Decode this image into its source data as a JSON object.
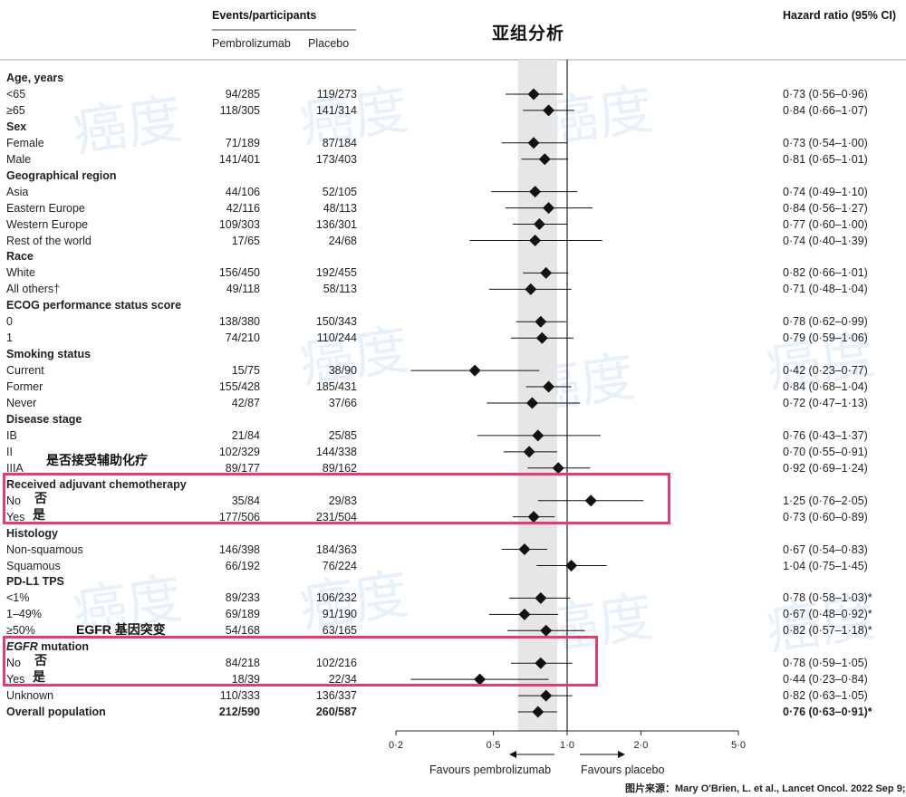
{
  "title_cn": "亚组分析",
  "header": {
    "events": "Events/participants",
    "pembro": "Pembrolizumab",
    "placebo": "Placebo",
    "hr": "Hazard ratio (95% CI)"
  },
  "annotations": {
    "adjuvant_cn": "是否接受辅助化疗",
    "egfr_cn": "EGFR 基因突变"
  },
  "favours": {
    "left": "Favours pembrolizumab",
    "right": "Favours placebo"
  },
  "source": "图片来源：Mary O'Brien, L. et al., Lancet Oncol. 2022 Sep 9;",
  "watermark": "癌度",
  "colors": {
    "highlight": "#e43c6d",
    "band": "#e6e6e6",
    "marker": "#111111"
  },
  "chart_data": {
    "type": "forest",
    "x_scale": "log",
    "xlim": [
      0.2,
      5.0
    ],
    "ticks": [
      0.2,
      0.5,
      1.0,
      2.0,
      5.0
    ],
    "tick_labels": [
      "0·2",
      "0·5",
      "1·0",
      "2·0",
      "5·0"
    ],
    "reference_line": 1.0,
    "overall_ci_band": [
      0.63,
      0.91
    ],
    "rows": [
      {
        "label": "Age, years",
        "category": true
      },
      {
        "label": "<65",
        "pem": "94/285",
        "pla": "119/273",
        "hr_text": "0·73 (0·56–0·96)",
        "hr": 0.73,
        "lo": 0.56,
        "hi": 0.96
      },
      {
        "label": "≥65",
        "pem": "118/305",
        "pla": "141/314",
        "hr_text": "0·84 (0·66–1·07)",
        "hr": 0.84,
        "lo": 0.66,
        "hi": 1.07
      },
      {
        "label": "Sex",
        "category": true
      },
      {
        "label": "Female",
        "pem": "71/189",
        "pla": "87/184",
        "hr_text": "0·73 (0·54–1·00)",
        "hr": 0.73,
        "lo": 0.54,
        "hi": 1.0
      },
      {
        "label": "Male",
        "pem": "141/401",
        "pla": "173/403",
        "hr_text": "0·81 (0·65–1·01)",
        "hr": 0.81,
        "lo": 0.65,
        "hi": 1.01
      },
      {
        "label": "Geographical region",
        "category": true
      },
      {
        "label": "Asia",
        "pem": "44/106",
        "pla": "52/105",
        "hr_text": "0·74 (0·49–1·10)",
        "hr": 0.74,
        "lo": 0.49,
        "hi": 1.1
      },
      {
        "label": "Eastern Europe",
        "pem": "42/116",
        "pla": "48/113",
        "hr_text": "0·84 (0·56–1·27)",
        "hr": 0.84,
        "lo": 0.56,
        "hi": 1.27
      },
      {
        "label": "Western Europe",
        "pem": "109/303",
        "pla": "136/301",
        "hr_text": "0·77 (0·60–1·00)",
        "hr": 0.77,
        "lo": 0.6,
        "hi": 1.0
      },
      {
        "label": "Rest of the world",
        "pem": "17/65",
        "pla": "24/68",
        "hr_text": "0·74 (0·40–1·39)",
        "hr": 0.74,
        "lo": 0.4,
        "hi": 1.39
      },
      {
        "label": "Race",
        "category": true
      },
      {
        "label": "White",
        "pem": "156/450",
        "pla": "192/455",
        "hr_text": "0·82 (0·66–1·01)",
        "hr": 0.82,
        "lo": 0.66,
        "hi": 1.01
      },
      {
        "label": "All others†",
        "pem": "49/118",
        "pla": "58/113",
        "hr_text": "0·71 (0·48–1·04)",
        "hr": 0.71,
        "lo": 0.48,
        "hi": 1.04
      },
      {
        "label": "ECOG performance status score",
        "category": true
      },
      {
        "label": "0",
        "pem": "138/380",
        "pla": "150/343",
        "hr_text": "0·78 (0·62–0·99)",
        "hr": 0.78,
        "lo": 0.62,
        "hi": 0.99
      },
      {
        "label": "1",
        "pem": "74/210",
        "pla": "110/244",
        "hr_text": "0·79 (0·59–1·06)",
        "hr": 0.79,
        "lo": 0.59,
        "hi": 1.06
      },
      {
        "label": "Smoking status",
        "category": true
      },
      {
        "label": "Current",
        "pem": "15/75",
        "pla": "38/90",
        "hr_text": "0·42 (0·23–0·77)",
        "hr": 0.42,
        "lo": 0.23,
        "hi": 0.77
      },
      {
        "label": "Former",
        "pem": "155/428",
        "pla": "185/431",
        "hr_text": "0·84 (0·68–1·04)",
        "hr": 0.84,
        "lo": 0.68,
        "hi": 1.04
      },
      {
        "label": "Never",
        "pem": "42/87",
        "pla": "37/66",
        "hr_text": "0·72 (0·47–1·13)",
        "hr": 0.72,
        "lo": 0.47,
        "hi": 1.13
      },
      {
        "label": "Disease stage",
        "category": true
      },
      {
        "label": "IB",
        "pem": "21/84",
        "pla": "25/85",
        "hr_text": "0·76 (0·43–1·37)",
        "hr": 0.76,
        "lo": 0.43,
        "hi": 1.37
      },
      {
        "label": "II",
        "pem": "102/329",
        "pla": "144/338",
        "hr_text": "0·70 (0·55–0·91)",
        "hr": 0.7,
        "lo": 0.55,
        "hi": 0.91
      },
      {
        "label": "IIIA",
        "pem": "89/177",
        "pla": "89/162",
        "hr_text": "0·92 (0·69–1·24)",
        "hr": 0.92,
        "lo": 0.69,
        "hi": 1.24
      },
      {
        "label": "Received adjuvant chemotherapy",
        "category": true
      },
      {
        "label": "No",
        "cn": "否",
        "pem": "35/84",
        "pla": "29/83",
        "hr_text": "1·25 (0·76–2·05)",
        "hr": 1.25,
        "lo": 0.76,
        "hi": 2.05
      },
      {
        "label": "Yes",
        "cn": "是",
        "pem": "177/506",
        "pla": "231/504",
        "hr_text": "0·73 (0·60–0·89)",
        "hr": 0.73,
        "lo": 0.6,
        "hi": 0.89
      },
      {
        "label": "Histology",
        "category": true
      },
      {
        "label": "Non-squamous",
        "pem": "146/398",
        "pla": "184/363",
        "hr_text": "0·67 (0·54–0·83)",
        "hr": 0.67,
        "lo": 0.54,
        "hi": 0.83
      },
      {
        "label": "Squamous",
        "pem": "66/192",
        "pla": "76/224",
        "hr_text": "1·04 (0·75–1·45)",
        "hr": 1.04,
        "lo": 0.75,
        "hi": 1.45
      },
      {
        "label": "PD-L1 TPS",
        "category": true
      },
      {
        "label": "<1%",
        "pem": "89/233",
        "pla": "106/232",
        "hr_text": "0·78 (0·58–1·03)*",
        "hr": 0.78,
        "lo": 0.58,
        "hi": 1.03
      },
      {
        "label": "1–49%",
        "pem": "69/189",
        "pla": "91/190",
        "hr_text": "0·67 (0·48–0·92)*",
        "hr": 0.67,
        "lo": 0.48,
        "hi": 0.92
      },
      {
        "label": "≥50%",
        "pem": "54/168",
        "pla": "63/165",
        "hr_text": "0·82 (0·57–1·18)*",
        "hr": 0.82,
        "lo": 0.57,
        "hi": 1.18
      },
      {
        "label": "EGFR mutation",
        "category": true
      },
      {
        "label": "No",
        "cn": "否",
        "pem": "84/218",
        "pla": "102/216",
        "hr_text": "0·78 (0·59–1·05)",
        "hr": 0.78,
        "lo": 0.59,
        "hi": 1.05
      },
      {
        "label": "Yes",
        "cn": "是",
        "pem": "18/39",
        "pla": "22/34",
        "hr_text": "0·44 (0·23–0·84)",
        "hr": 0.44,
        "lo": 0.23,
        "hi": 0.84
      },
      {
        "label": "Unknown",
        "pem": "110/333",
        "pla": "136/337",
        "hr_text": "0·82 (0·63–1·05)",
        "hr": 0.82,
        "lo": 0.63,
        "hi": 1.05
      },
      {
        "label": "Overall population",
        "bold": true,
        "pem": "212/590",
        "pla": "260/587",
        "hr_text": "0·76 (0·63–0·91)*",
        "hr": 0.76,
        "lo": 0.63,
        "hi": 0.91
      }
    ]
  }
}
